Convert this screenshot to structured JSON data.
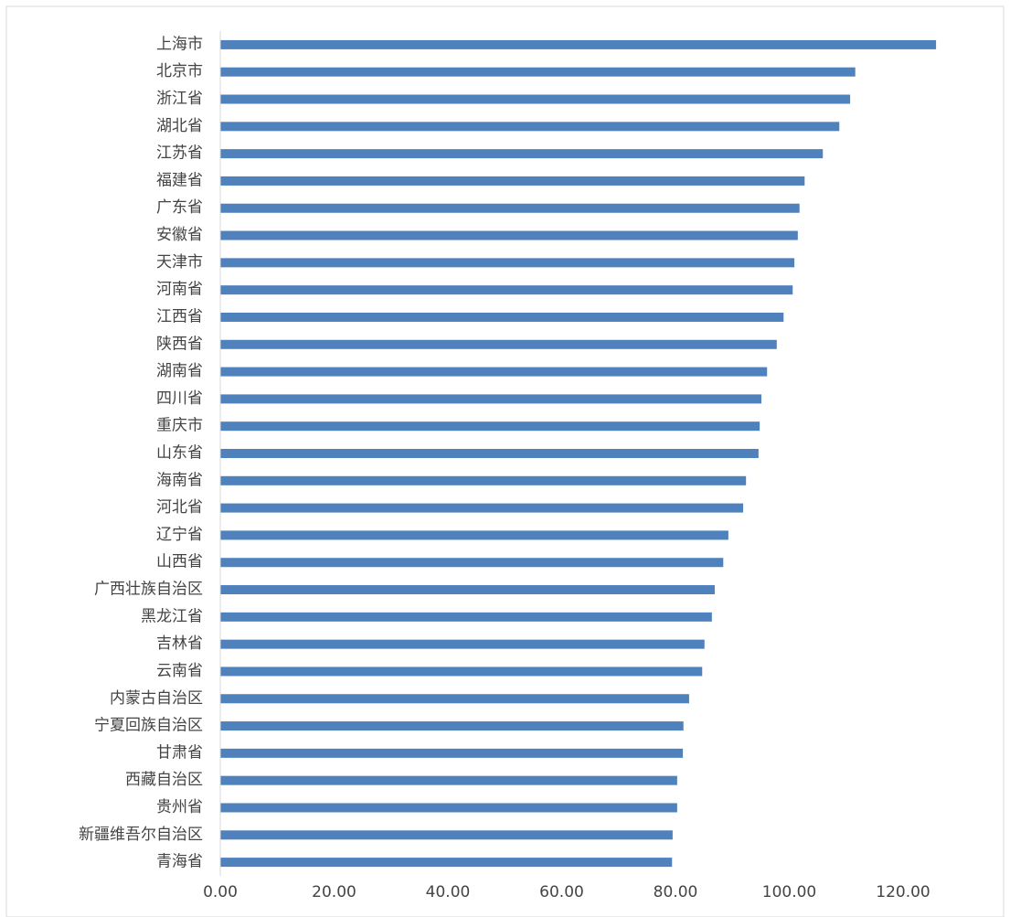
{
  "chart_data": {
    "type": "bar",
    "orientation": "horizontal",
    "color": "#4f81bd",
    "categories": [
      "上海市",
      "北京市",
      "浙江省",
      "湖北省",
      "江苏省",
      "福建省",
      "广东省",
      "安徽省",
      "天津市",
      "河南省",
      "江西省",
      "陕西省",
      "湖南省",
      "四川省",
      "重庆市",
      "山东省",
      "海南省",
      "河北省",
      "辽宁省",
      "山西省",
      "广西壮族自治区",
      "黑龙江省",
      "吉林省",
      "云南省",
      "内蒙古自治区",
      "宁夏回族自治区",
      "甘肃省",
      "西藏自治区",
      "贵州省",
      "新疆维吾尔自治区",
      "青海省"
    ],
    "values": [
      125.8,
      111.6,
      110.7,
      108.8,
      105.9,
      102.7,
      101.8,
      101.5,
      100.9,
      100.6,
      99.0,
      97.8,
      96.1,
      95.1,
      94.8,
      94.6,
      92.4,
      91.9,
      89.3,
      88.4,
      86.9,
      86.4,
      85.1,
      84.7,
      82.4,
      81.4,
      81.3,
      80.3,
      80.3,
      79.5,
      79.4
    ],
    "xlim": [
      0,
      135
    ],
    "xticks": [
      {
        "value": 0,
        "label": "0.00"
      },
      {
        "value": 20,
        "label": "20.00"
      },
      {
        "value": 40,
        "label": "40.00"
      },
      {
        "value": 60,
        "label": "60.00"
      },
      {
        "value": 80,
        "label": "80.00"
      },
      {
        "value": 100,
        "label": "100.00"
      },
      {
        "value": 120,
        "label": "120.00"
      }
    ],
    "grid": false
  }
}
